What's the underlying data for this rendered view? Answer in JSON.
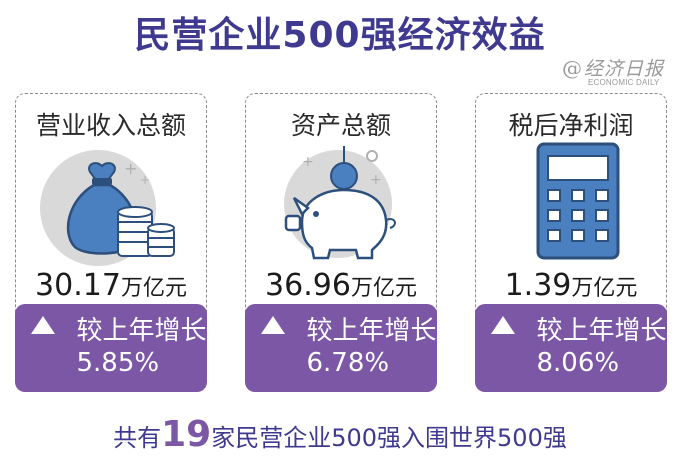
{
  "title": "民营企业500强经济效益",
  "logo": {
    "at": "@",
    "cn": "经济日报",
    "en": "ECONOMIC DAILY"
  },
  "cards": [
    {
      "label": "营业收入总额",
      "value": "30.17",
      "unit": "万亿元",
      "growth_label": "较上年增长",
      "growth_value": "5.85%"
    },
    {
      "label": "资产总额",
      "value": "36.96",
      "unit": "万亿元",
      "growth_label": "较上年增长",
      "growth_value": "6.78%"
    },
    {
      "label": "税后净利润",
      "value": "1.39",
      "unit": "万亿元",
      "growth_label": "较上年增长",
      "growth_value": "8.06%"
    }
  ],
  "footer": {
    "pre": "共有",
    "num": "19",
    "post": "家民营企业500强入围世界500强"
  },
  "colors": {
    "title": "#3f3a8f",
    "accent": "#7c57a6",
    "icon_fill": "#4a7fc0",
    "icon_light": "#d9d9d9"
  },
  "icons": [
    "money-bag-icon",
    "piggy-bank-icon",
    "calculator-icon",
    "up-triangle-icon"
  ]
}
